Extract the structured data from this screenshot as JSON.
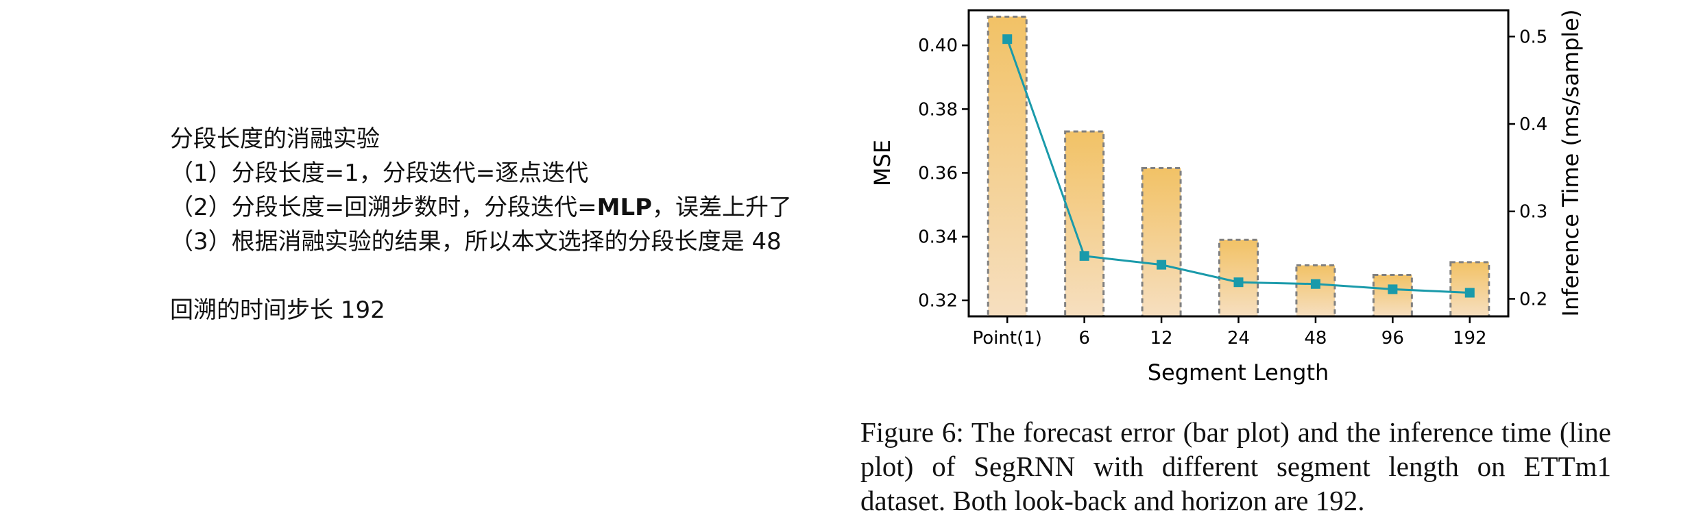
{
  "notes": {
    "title": "分段长度的消融实验",
    "item1": "（1）分段长度=1，分段迭代=逐点迭代",
    "item2_pre": "（2）分段长度=回溯步数时，分段迭代=",
    "item2_bold": "MLP",
    "item2_post": "，误差上升了",
    "item3": "（3）根据消融实验的结果，所以本文选择的分段长度是 48",
    "lookback": "回溯的时间步长 192"
  },
  "caption": "Figure 6: The forecast error (bar plot) and the inference time (line plot) of SegRNN with different segment length on ETTm1 dataset. Both look-back and horizon are 192.",
  "chart_data": {
    "type": "bar",
    "categories": [
      "Point(1)",
      "6",
      "12",
      "24",
      "48",
      "96",
      "192"
    ],
    "xlabel": "Segment Length",
    "ylabel": "MSE",
    "y2label": "Inference Time (ms/sample)",
    "ylim": [
      0.315,
      0.411
    ],
    "y2lim": [
      0.18,
      0.53
    ],
    "yticks": [
      0.32,
      0.34,
      0.36,
      0.38,
      0.4
    ],
    "y2ticks": [
      0.2,
      0.3,
      0.4,
      0.5
    ],
    "series": [
      {
        "type": "bar",
        "axis": "left",
        "values": [
          0.409,
          0.373,
          0.3615,
          0.339,
          0.331,
          0.328,
          0.332
        ]
      },
      {
        "type": "line",
        "axis": "right",
        "values": [
          0.497,
          0.249,
          0.239,
          0.219,
          0.217,
          0.211,
          0.207
        ]
      }
    ],
    "colors": {
      "bar_top": "#f2c266",
      "bar_bottom": "#f6dfc0",
      "bar_edge": "#808080",
      "line": "#1a9aaa"
    }
  }
}
